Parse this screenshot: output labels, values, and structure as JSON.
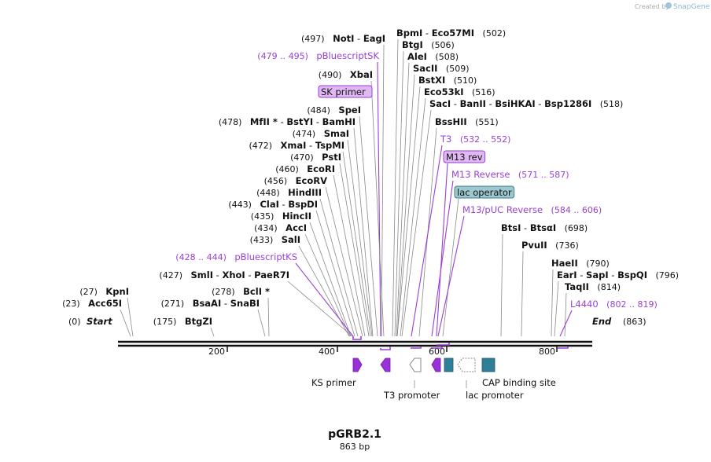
{
  "header": {
    "watermark": "Created by",
    "brand": "SnapGene"
  },
  "map": {
    "name": "pGRB2.1",
    "length_label": "863 bp",
    "start_label": "Start",
    "end_label": "End",
    "start_pos": "(0)",
    "end_pos": "(863)",
    "ticks": [
      "200",
      "400",
      "600",
      "800"
    ]
  },
  "sites": [
    {
      "id": "notI",
      "pos": "(497)",
      "enzymes": [
        "NotI",
        "EagI"
      ],
      "pos_after": false
    },
    {
      "id": "pbluescriptsk",
      "pos": "(479 .. 495)",
      "enzymes": [
        "pBluescriptSK"
      ],
      "pos_after": false,
      "feature": true
    },
    {
      "id": "xbaI",
      "pos": "(490)",
      "enzymes": [
        "XbaI"
      ],
      "pos_after": false
    },
    {
      "id": "speI",
      "pos": "(484)",
      "enzymes": [
        "SpeI"
      ],
      "pos_after": false
    },
    {
      "id": "mfeI",
      "pos": "(478)",
      "enzymes": [
        "MfII *",
        "BstYI",
        "BamHI"
      ],
      "pos_after": false
    },
    {
      "id": "smaI",
      "pos": "(474)",
      "enzymes": [
        "SmaI"
      ],
      "pos_after": false
    },
    {
      "id": "xmaI",
      "pos": "(472)",
      "enzymes": [
        "XmaI",
        "TspMI"
      ],
      "pos_after": false
    },
    {
      "id": "pstI",
      "pos": "(470)",
      "enzymes": [
        "PstI"
      ],
      "pos_after": false
    },
    {
      "id": "ecoRI",
      "pos": "(460)",
      "enzymes": [
        "EcoRI"
      ],
      "pos_after": false
    },
    {
      "id": "ecoRV",
      "pos": "(456)",
      "enzymes": [
        "EcoRV"
      ],
      "pos_after": false
    },
    {
      "id": "hindIII",
      "pos": "(448)",
      "enzymes": [
        "HindIII"
      ],
      "pos_after": false
    },
    {
      "id": "claI",
      "pos": "(443)",
      "enzymes": [
        "ClaI",
        "BspDI"
      ],
      "pos_after": false
    },
    {
      "id": "hincII",
      "pos": "(435)",
      "enzymes": [
        "HincII"
      ],
      "pos_after": false
    },
    {
      "id": "accI",
      "pos": "(434)",
      "enzymes": [
        "AccI"
      ],
      "pos_after": false
    },
    {
      "id": "salI",
      "pos": "(433)",
      "enzymes": [
        "SalI"
      ],
      "pos_after": false
    },
    {
      "id": "pbluescriptks",
      "pos": "(428 .. 444)",
      "enzymes": [
        "pBluescriptKS"
      ],
      "pos_after": false,
      "feature": true
    },
    {
      "id": "smlI",
      "pos": "(427)",
      "enzymes": [
        "SmlI",
        "XhoI",
        "PaeR7I"
      ],
      "pos_after": false
    },
    {
      "id": "kpnI",
      "pos": "(27)",
      "enzymes": [
        "KpnI"
      ],
      "pos_after": false
    },
    {
      "id": "acc65I",
      "pos": "(23)",
      "enzymes": [
        "Acc65I"
      ],
      "pos_after": false
    },
    {
      "id": "bclI",
      "pos": "(278)",
      "enzymes": [
        "BclI *"
      ],
      "pos_after": false
    },
    {
      "id": "bsaAI",
      "pos": "(271)",
      "enzymes": [
        "BsaAI",
        "SnaBI"
      ],
      "pos_after": false
    },
    {
      "id": "btgZI",
      "pos": "(175)",
      "enzymes": [
        "BtgZI"
      ],
      "pos_after": false
    },
    {
      "id": "bpmI",
      "pos": "(502)",
      "enzymes": [
        "BpmI",
        "Eco57MI"
      ],
      "pos_after": true
    },
    {
      "id": "btgI",
      "pos": "(506)",
      "enzymes": [
        "BtgI"
      ],
      "pos_after": true
    },
    {
      "id": "aleI",
      "pos": "(508)",
      "enzymes": [
        "AleI"
      ],
      "pos_after": true
    },
    {
      "id": "sacII",
      "pos": "(509)",
      "enzymes": [
        "SacII"
      ],
      "pos_after": true
    },
    {
      "id": "bstXI",
      "pos": "(510)",
      "enzymes": [
        "BstXI"
      ],
      "pos_after": true
    },
    {
      "id": "eco53kI",
      "pos": "(516)",
      "enzymes": [
        "Eco53kI"
      ],
      "pos_after": true
    },
    {
      "id": "sacI",
      "pos": "(518)",
      "enzymes": [
        "SacI",
        "BanII",
        "BsiHKAI",
        "Bsp1286I"
      ],
      "pos_after": true
    },
    {
      "id": "bssHII",
      "pos": "(551)",
      "enzymes": [
        "BssHII"
      ],
      "pos_after": true
    },
    {
      "id": "t3",
      "pos": "(532 .. 552)",
      "enzymes": [
        "T3"
      ],
      "pos_after": true,
      "feature": true
    },
    {
      "id": "m13rev",
      "pos": "",
      "enzymes": [
        "M13 rev"
      ],
      "pos_after": true,
      "primer": true
    },
    {
      "id": "m13reverse",
      "pos": "(571 .. 587)",
      "enzymes": [
        "M13 Reverse"
      ],
      "pos_after": true,
      "feature": true
    },
    {
      "id": "lacop",
      "pos": "",
      "enzymes": [
        "lac operator"
      ],
      "pos_after": true,
      "box": true
    },
    {
      "id": "m13puc",
      "pos": "(584 .. 606)",
      "enzymes": [
        "M13/pUC Reverse"
      ],
      "pos_after": true,
      "feature": true
    },
    {
      "id": "btsI",
      "pos": "(698)",
      "enzymes": [
        "BtsI",
        "BtsαI"
      ],
      "pos_after": true
    },
    {
      "id": "pvuII",
      "pos": "(736)",
      "enzymes": [
        "PvuII"
      ],
      "pos_after": true
    },
    {
      "id": "haeII",
      "pos": "(790)",
      "enzymes": [
        "HaeII"
      ],
      "pos_after": true
    },
    {
      "id": "earI",
      "pos": "(796)",
      "enzymes": [
        "EarI",
        "SapI",
        "BspQI"
      ],
      "pos_after": true
    },
    {
      "id": "taqII",
      "pos": "(814)",
      "enzymes": [
        "TaqII"
      ],
      "pos_after": true
    },
    {
      "id": "l4440",
      "pos": "(802 .. 819)",
      "enzymes": [
        "L4440"
      ],
      "pos_after": true,
      "feature": true
    }
  ],
  "primers": {
    "sk": "SK primer"
  },
  "features": {
    "ks_primer": "KS primer",
    "t3_promoter": "T3 promoter",
    "lac_promoter": "lac promoter",
    "cap_site": "CAP binding site"
  },
  "colors": {
    "purple": "#9a3fd6",
    "primer_fill": "#e0b8f4",
    "lacop_fill": "#9dc8d0",
    "cap_fill": "#2f7f99",
    "line": "#888888"
  }
}
